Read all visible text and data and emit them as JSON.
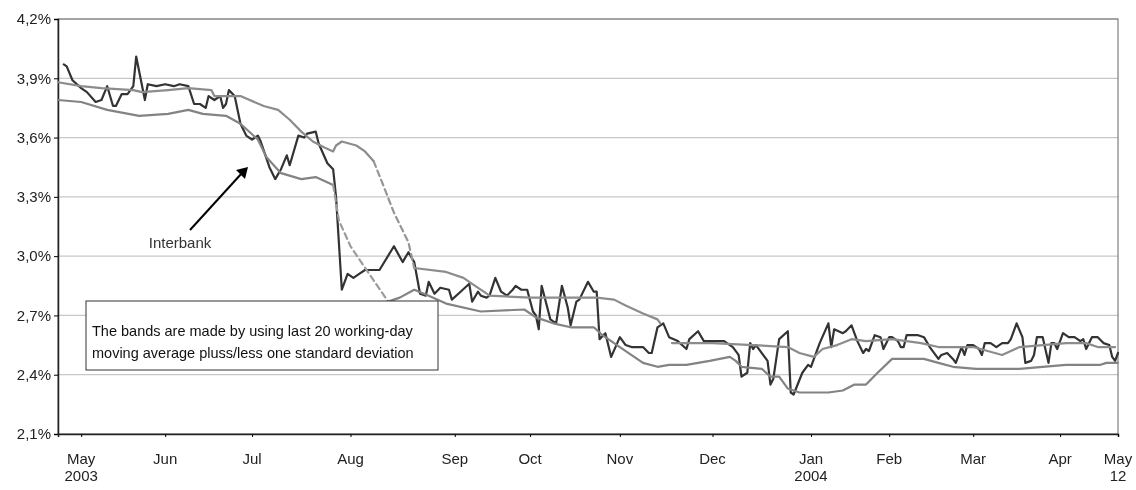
{
  "chart_data": {
    "type": "line",
    "xlim": [
      "2003-05-12",
      "2004-05-12"
    ],
    "xticks": [
      {
        "value": "2003-05-20",
        "label": "May 2003"
      },
      {
        "value": "2003-06-18",
        "label": "Jun"
      },
      {
        "value": "2003-07-18",
        "label": "Jul"
      },
      {
        "value": "2003-08-21",
        "label": "Aug"
      },
      {
        "value": "2003-09-26",
        "label": "Sep"
      },
      {
        "value": "2003-10-22",
        "label": "Oct"
      },
      {
        "value": "2003-11-22",
        "label": "Nov"
      },
      {
        "value": "2003-12-24",
        "label": "Dec"
      },
      {
        "value": "2004-01-27",
        "label": "Jan 2004"
      },
      {
        "value": "2004-02-23",
        "label": "Feb"
      },
      {
        "value": "2004-03-23",
        "label": "Mar"
      },
      {
        "value": "2004-04-22",
        "label": "Apr"
      },
      {
        "value": "2004-05-12",
        "label": "May 12"
      }
    ],
    "ylim": [
      2.1,
      4.2
    ],
    "yticks": [
      {
        "value": 2.1,
        "label": "2,1%"
      },
      {
        "value": 2.4,
        "label": "2,4%"
      },
      {
        "value": 2.7,
        "label": "2,7%"
      },
      {
        "value": 3.0,
        "label": "3,0%"
      },
      {
        "value": 3.3,
        "label": "3,3%"
      },
      {
        "value": 3.6,
        "label": "3,6%"
      },
      {
        "value": 3.9,
        "label": "3,9%"
      },
      {
        "value": 4.2,
        "label": "4,2%"
      }
    ],
    "grid": "y",
    "marker": "none",
    "annotations": [
      "The bands are made by using last 20 working-day moving average pluss/less one standard deviation"
    ],
    "series": [
      {
        "name": "Interbank",
        "color": "#333333",
        "x": [
          "2003-05-14",
          "2003-05-15",
          "2003-05-17",
          "2003-05-20",
          "2003-05-22",
          "2003-05-25",
          "2003-05-27",
          "2003-05-29",
          "2003-05-31",
          "2003-06-01",
          "2003-06-03",
          "2003-06-05",
          "2003-06-07",
          "2003-06-08",
          "2003-06-11",
          "2003-06-12",
          "2003-06-15",
          "2003-06-18",
          "2003-06-21",
          "2003-06-23",
          "2003-06-26",
          "2003-06-28",
          "2003-06-30",
          "2003-07-02",
          "2003-07-03",
          "2003-07-05",
          "2003-07-07",
          "2003-07-08",
          "2003-07-09",
          "2003-07-10",
          "2003-07-12",
          "2003-07-14",
          "2003-07-16",
          "2003-07-18",
          "2003-07-20",
          "2003-07-21",
          "2003-07-24",
          "2003-07-26",
          "2003-07-28",
          "2003-07-30",
          "2003-07-31",
          "2003-08-03",
          "2003-08-05",
          "2003-08-06",
          "2003-08-09",
          "2003-08-10",
          "2003-08-13",
          "2003-08-15",
          "2003-08-16",
          "2003-08-18",
          "2003-08-20",
          "2003-08-22",
          "2003-08-24",
          "2003-08-26",
          "2003-08-31",
          "2003-09-05",
          "2003-09-08",
          "2003-09-10",
          "2003-09-12",
          "2003-09-14",
          "2003-09-16",
          "2003-09-17",
          "2003-09-19",
          "2003-09-21",
          "2003-09-24",
          "2003-09-25",
          "2003-09-28",
          "2003-10-01",
          "2003-10-02",
          "2003-10-04",
          "2003-10-05",
          "2003-10-07",
          "2003-10-08",
          "2003-10-10",
          "2003-10-12",
          "2003-10-14",
          "2003-10-16",
          "2003-10-17",
          "2003-10-19",
          "2003-10-21",
          "2003-10-23",
          "2003-10-24",
          "2003-10-25",
          "2003-10-26",
          "2003-10-29",
          "2003-10-31",
          "2003-11-02",
          "2003-11-04",
          "2003-11-05",
          "2003-11-07",
          "2003-11-08",
          "2003-11-11",
          "2003-11-13",
          "2003-11-14",
          "2003-11-15",
          "2003-11-17",
          "2003-11-19",
          "2003-11-22",
          "2003-11-24",
          "2003-11-26",
          "2003-11-28",
          "2003-11-30",
          "2003-12-02",
          "2003-12-03",
          "2003-12-05",
          "2003-12-07",
          "2003-12-09",
          "2003-12-12",
          "2003-12-15",
          "2003-12-16",
          "2003-12-19",
          "2003-12-21",
          "2003-12-24",
          "2003-12-28",
          "2003-12-29",
          "2003-12-31",
          "2004-01-02",
          "2004-01-03",
          "2004-01-05",
          "2004-01-06",
          "2004-01-07",
          "2004-01-08",
          "2004-01-12",
          "2004-01-13",
          "2004-01-14",
          "2004-01-16",
          "2004-01-19",
          "2004-01-20",
          "2004-01-21",
          "2004-01-24",
          "2004-01-26",
          "2004-01-27",
          "2004-01-28",
          "2004-01-30",
          "2004-02-02",
          "2004-02-03",
          "2004-02-04",
          "2004-02-07",
          "2004-02-08",
          "2004-02-10",
          "2004-02-12",
          "2004-02-14",
          "2004-02-15",
          "2004-02-16",
          "2004-02-18",
          "2004-02-20",
          "2004-02-21",
          "2004-02-23",
          "2004-02-24",
          "2004-02-26",
          "2004-02-27",
          "2004-02-28",
          "2004-02-29",
          "2004-03-02",
          "2004-03-04",
          "2004-03-06",
          "2004-03-08",
          "2004-03-11",
          "2004-03-12",
          "2004-03-14",
          "2004-03-16",
          "2004-03-17",
          "2004-03-19",
          "2004-03-20",
          "2004-03-21",
          "2004-03-23",
          "2004-03-25",
          "2004-03-26",
          "2004-03-27",
          "2004-03-29",
          "2004-03-31",
          "2004-04-02",
          "2004-04-04",
          "2004-04-05",
          "2004-04-07",
          "2004-04-09",
          "2004-04-10",
          "2004-04-12",
          "2004-04-13",
          "2004-04-14",
          "2004-04-16",
          "2004-04-18",
          "2004-04-19",
          "2004-04-20",
          "2004-04-21",
          "2004-04-23",
          "2004-04-25",
          "2004-04-27",
          "2004-04-29",
          "2004-04-30",
          "2004-05-01",
          "2004-05-03",
          "2004-05-05",
          "2004-05-07",
          "2004-05-09",
          "2004-05-10",
          "2004-05-11",
          "2004-05-12"
        ],
        "values": [
          3.97,
          3.96,
          3.89,
          3.85,
          3.83,
          3.78,
          3.79,
          3.86,
          3.76,
          3.76,
          3.82,
          3.82,
          3.86,
          4.01,
          3.79,
          3.87,
          3.86,
          3.87,
          3.86,
          3.87,
          3.86,
          3.77,
          3.77,
          3.75,
          3.81,
          3.79,
          3.81,
          3.75,
          3.77,
          3.84,
          3.81,
          3.67,
          3.61,
          3.59,
          3.61,
          3.58,
          3.45,
          3.39,
          3.44,
          3.51,
          3.46,
          3.61,
          3.6,
          3.62,
          3.63,
          3.57,
          3.47,
          3.44,
          3.3,
          2.83,
          2.91,
          2.89,
          2.91,
          2.93,
          2.93,
          3.05,
          2.97,
          3.02,
          2.97,
          2.81,
          2.8,
          2.87,
          2.81,
          2.84,
          2.83,
          2.78,
          2.82,
          2.86,
          2.77,
          2.82,
          2.8,
          2.79,
          2.8,
          2.89,
          2.82,
          2.8,
          2.83,
          2.85,
          2.83,
          2.83,
          2.72,
          2.7,
          2.63,
          2.85,
          2.68,
          2.66,
          2.85,
          2.74,
          2.65,
          2.77,
          2.78,
          2.87,
          2.82,
          2.82,
          2.58,
          2.61,
          2.49,
          2.59,
          2.55,
          2.54,
          2.54,
          2.54,
          2.51,
          2.51,
          2.64,
          2.66,
          2.59,
          2.57,
          2.53,
          2.58,
          2.62,
          2.57,
          2.57,
          2.57,
          2.56,
          2.54,
          2.5,
          2.39,
          2.41,
          2.56,
          2.53,
          2.55,
          2.47,
          2.35,
          2.38,
          2.58,
          2.62,
          2.31,
          2.3,
          2.41,
          2.45,
          2.44,
          2.48,
          2.56,
          2.66,
          2.54,
          2.63,
          2.61,
          2.62,
          2.65,
          2.57,
          2.51,
          2.53,
          2.52,
          2.6,
          2.59,
          2.53,
          2.59,
          2.59,
          2.57,
          2.54,
          2.54,
          2.6,
          2.6,
          2.6,
          2.59,
          2.54,
          2.48,
          2.5,
          2.51,
          2.48,
          2.46,
          2.54,
          2.5,
          2.55,
          2.55,
          2.53,
          2.5,
          2.56,
          2.56,
          2.54,
          2.56,
          2.56,
          2.58,
          2.66,
          2.59,
          2.46,
          2.47,
          2.5,
          2.59,
          2.59,
          2.46,
          2.56,
          2.56,
          2.53,
          2.61,
          2.59,
          2.59,
          2.57,
          2.58,
          2.53,
          2.59,
          2.59,
          2.56,
          2.55,
          2.49,
          2.47,
          2.51
        ]
      },
      {
        "color": "#8c8c8c",
        "x": [
          "2003-05-12",
          "2003-05-20",
          "2003-05-27",
          "2003-06-07",
          "2003-06-10",
          "2003-06-19",
          "2003-06-26",
          "2003-07-04",
          "2003-07-05",
          "2003-07-14",
          "2003-07-22",
          "2003-07-27",
          "2003-07-31",
          "2003-08-04",
          "2003-08-08",
          "2003-08-12",
          "2003-08-15",
          "2003-08-16",
          "2003-08-18",
          "2003-08-23",
          "2003-08-26",
          "2003-08-29",
          "2003-09-03",
          "2003-09-12",
          "2003-09-23",
          "2003-09-29",
          "2003-10-02",
          "2003-10-06",
          "2003-10-08",
          "2003-10-22",
          "2003-11-04",
          "2003-11-14",
          "2003-11-20",
          "2003-11-24",
          "2003-11-30",
          "2003-12-05",
          "2003-12-06",
          "2003-12-08",
          "2003-12-10",
          "2003-12-24",
          "2004-01-07",
          "2004-01-19",
          "2004-01-23",
          "2004-01-28",
          "2004-01-31",
          "2004-02-05",
          "2004-02-10",
          "2004-02-15",
          "2004-02-24",
          "2004-03-05",
          "2004-03-11",
          "2004-03-23",
          "2004-04-02",
          "2004-04-08",
          "2004-04-16",
          "2004-04-24",
          "2004-05-01",
          "2004-05-05",
          "2004-05-11"
        ],
        "values": [
          3.88,
          3.86,
          3.85,
          3.84,
          3.83,
          3.84,
          3.85,
          3.84,
          3.81,
          3.81,
          3.76,
          3.74,
          3.69,
          3.63,
          3.58,
          3.55,
          3.53,
          3.56,
          3.58,
          3.56,
          3.53,
          3.48,
          null,
          2.94,
          2.92,
          2.89,
          2.86,
          2.82,
          2.8,
          2.79,
          2.79,
          2.79,
          2.78,
          2.75,
          2.71,
          2.68,
          2.66,
          null,
          2.56,
          2.56,
          2.55,
          2.54,
          2.51,
          2.49,
          2.53,
          2.55,
          2.58,
          2.57,
          2.58,
          2.56,
          2.54,
          2.54,
          2.5,
          2.54,
          2.55,
          2.56,
          2.56,
          2.54,
          2.54
        ]
      },
      {
        "color": "#969696",
        "line_style": "dashed",
        "x": [
          "2003-08-29",
          "2003-09-01",
          "2003-09-05",
          "2003-09-10",
          "2003-09-12"
        ],
        "values": [
          3.48,
          3.37,
          3.22,
          3.07,
          2.94
        ]
      },
      {
        "color": "#838383",
        "x": [
          "2003-05-12",
          "2003-05-20",
          "2003-05-29",
          "2003-06-09",
          "2003-06-19",
          "2003-06-26",
          "2003-07-01",
          "2003-07-09",
          "2003-07-14",
          "2003-07-20",
          "2003-07-23",
          "2003-07-28",
          "2003-08-04",
          "2003-08-09",
          "2003-08-15",
          "2003-08-20",
          "2003-09-03",
          "2003-09-07",
          "2003-09-12",
          "2003-09-17",
          "2003-09-23",
          "2003-10-05",
          "2003-10-20",
          "2003-10-24",
          "2003-10-30",
          "2003-11-05",
          "2003-11-13",
          "2003-11-16",
          "2003-11-22",
          "2003-11-30",
          "2003-12-05",
          "2003-12-09",
          "2003-12-15",
          "2003-12-23",
          "2003-12-30",
          "2004-01-01",
          "2004-01-03",
          "2004-01-10",
          "2004-01-13",
          "2004-01-16",
          "2004-01-19",
          "2004-01-23",
          "2004-01-28",
          "2004-02-02",
          "2004-02-07",
          "2004-02-11",
          "2004-02-15",
          "2004-02-19",
          "2004-02-24",
          "2004-03-01",
          "2004-03-06",
          "2004-03-11",
          "2004-03-16",
          "2004-03-24",
          "2004-04-08",
          "2004-04-16",
          "2004-04-24",
          "2004-05-06",
          "2004-05-08",
          "2004-05-12"
        ],
        "values": [
          3.79,
          3.78,
          3.74,
          3.71,
          3.72,
          3.74,
          3.72,
          3.71,
          3.67,
          3.59,
          3.5,
          3.42,
          3.39,
          3.4,
          3.36,
          null,
          2.77,
          2.79,
          2.83,
          2.8,
          2.76,
          2.72,
          2.73,
          2.69,
          2.66,
          2.64,
          2.64,
          2.6,
          2.54,
          2.46,
          2.44,
          2.45,
          2.45,
          2.47,
          2.49,
          2.47,
          2.44,
          2.43,
          2.39,
          2.39,
          2.33,
          2.31,
          2.31,
          2.31,
          2.32,
          2.35,
          2.35,
          2.41,
          2.48,
          2.48,
          2.48,
          2.46,
          2.44,
          2.43,
          2.43,
          2.44,
          2.45,
          2.45,
          2.46,
          2.46
        ]
      },
      {
        "color": "#9c9c9c",
        "line_style": "dashed",
        "x": [
          "2003-08-15",
          "2003-08-17",
          "2003-08-21",
          "2003-08-27",
          "2003-09-03"
        ],
        "values": [
          3.36,
          3.18,
          3.05,
          2.92,
          2.77
        ]
      }
    ]
  }
}
